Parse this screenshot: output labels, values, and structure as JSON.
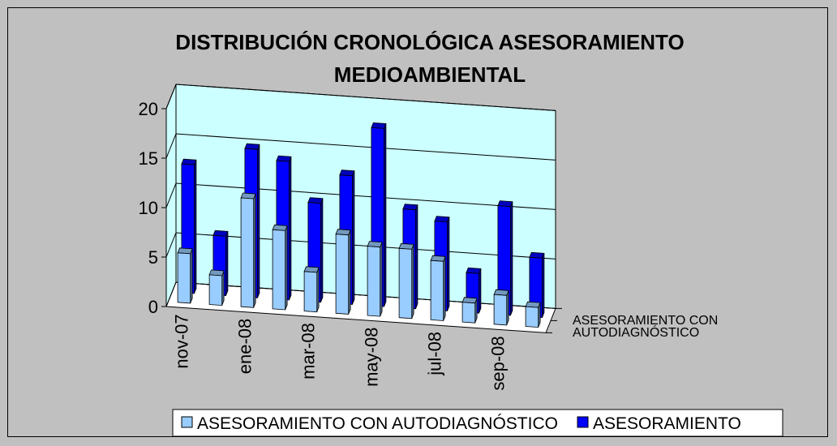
{
  "chart_data": {
    "type": "bar3d",
    "title": "DISTRIBUCIÓN CRONOLÓGICA ASESORAMIENTO MEDIOAMBIENTAL",
    "categories": [
      "nov-07",
      null,
      "ene-08",
      null,
      "mar-08",
      null,
      "may-08",
      null,
      "jul-08",
      null,
      "sep-08",
      null
    ],
    "series": [
      {
        "name": "ASESORAMIENTO CON AUTODIAGNÓSTICO",
        "color": "#99ccff",
        "values": [
          5,
          3,
          11,
          8,
          4,
          8,
          7,
          7,
          6,
          2,
          3,
          2
        ]
      },
      {
        "name": "ASESORAMIENTO",
        "color": "#0000ff",
        "values": [
          13,
          6,
          15,
          14,
          10,
          13,
          18,
          10,
          9,
          4,
          11,
          6
        ]
      }
    ],
    "ylim": [
      0,
      20
    ],
    "yticks": [
      0,
      5,
      10,
      15,
      20
    ],
    "grid": true,
    "legend": "bottom"
  }
}
